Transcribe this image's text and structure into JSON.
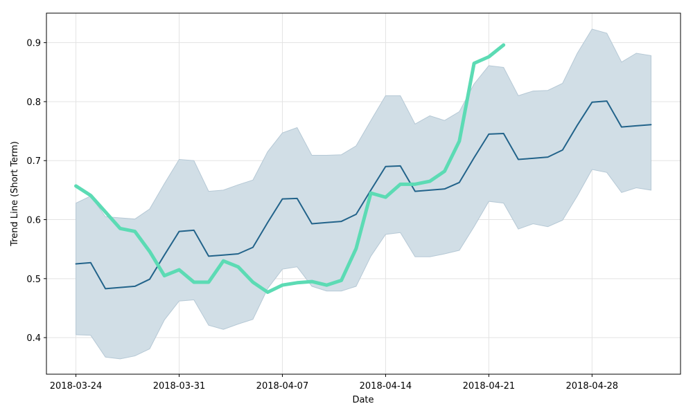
{
  "chart_data": {
    "type": "line",
    "x_label": "Date",
    "y_label": "Trend Line (Short Term)",
    "x": [
      "2018-03-24",
      "2018-03-25",
      "2018-03-26",
      "2018-03-27",
      "2018-03-28",
      "2018-03-29",
      "2018-03-30",
      "2018-03-31",
      "2018-04-01",
      "2018-04-02",
      "2018-04-03",
      "2018-04-04",
      "2018-04-05",
      "2018-04-06",
      "2018-04-07",
      "2018-04-08",
      "2018-04-09",
      "2018-04-10",
      "2018-04-11",
      "2018-04-12",
      "2018-04-13",
      "2018-04-14",
      "2018-04-15",
      "2018-04-16",
      "2018-04-17",
      "2018-04-18",
      "2018-04-19",
      "2018-04-20",
      "2018-04-21",
      "2018-04-22",
      "2018-04-23",
      "2018-04-24",
      "2018-04-25",
      "2018-04-26",
      "2018-04-27",
      "2018-04-28",
      "2018-04-29",
      "2018-04-30",
      "2018-05-01",
      "2018-05-02"
    ],
    "band": {
      "color": "#d1dee6",
      "edge_color": "#b5c8d5",
      "upper": [
        0.628,
        0.64,
        0.605,
        0.603,
        0.601,
        0.618,
        0.661,
        0.702,
        0.7,
        0.648,
        0.65,
        0.659,
        0.667,
        0.715,
        0.747,
        0.756,
        0.709,
        0.709,
        0.71,
        0.725,
        0.768,
        0.81,
        0.81,
        0.762,
        0.776,
        0.768,
        0.783,
        0.83,
        0.861,
        0.858,
        0.81,
        0.818,
        0.819,
        0.831,
        0.882,
        0.923,
        0.916,
        0.867,
        0.882,
        0.878
      ],
      "lower": [
        0.405,
        0.404,
        0.367,
        0.364,
        0.369,
        0.381,
        0.43,
        0.462,
        0.464,
        0.421,
        0.414,
        0.423,
        0.431,
        0.483,
        0.516,
        0.52,
        0.487,
        0.479,
        0.479,
        0.487,
        0.538,
        0.575,
        0.578,
        0.537,
        0.537,
        0.542,
        0.548,
        0.588,
        0.631,
        0.628,
        0.584,
        0.593,
        0.588,
        0.599,
        0.64,
        0.685,
        0.68,
        0.646,
        0.654,
        0.65
      ]
    },
    "mean": {
      "color": "#22638a",
      "values": [
        0.525,
        0.527,
        0.483,
        0.485,
        0.487,
        0.499,
        0.54,
        0.58,
        0.582,
        0.538,
        0.54,
        0.542,
        0.553,
        0.595,
        0.635,
        0.636,
        0.593,
        0.595,
        0.597,
        0.609,
        0.65,
        0.69,
        0.691,
        0.648,
        0.65,
        0.652,
        0.663,
        0.705,
        0.745,
        0.746,
        0.702,
        0.704,
        0.706,
        0.718,
        0.76,
        0.799,
        0.801,
        0.757,
        0.759,
        0.761
      ]
    },
    "trend": {
      "color": "#5cdbb4",
      "values": [
        0.657,
        0.641,
        0.613,
        0.585,
        0.58,
        0.546,
        0.505,
        0.515,
        0.494,
        0.494,
        0.53,
        0.52,
        0.494,
        0.477,
        0.489,
        0.493,
        0.495,
        0.489,
        0.497,
        0.551,
        0.645,
        0.638,
        0.66,
        0.66,
        0.665,
        0.682,
        0.733,
        0.865,
        0.876,
        0.896,
        null,
        null,
        null,
        null,
        null,
        null,
        null,
        null,
        null,
        null
      ]
    },
    "xlim": [
      "2018-03-22",
      "2018-05-04"
    ],
    "xticks": [
      "2018-03-24",
      "2018-03-31",
      "2018-04-07",
      "2018-04-14",
      "2018-04-21",
      "2018-04-28"
    ],
    "ylim": [
      0.338,
      0.95
    ],
    "yticks": [
      0.4,
      0.5,
      0.6,
      0.7,
      0.8,
      0.9
    ],
    "grid": true
  }
}
